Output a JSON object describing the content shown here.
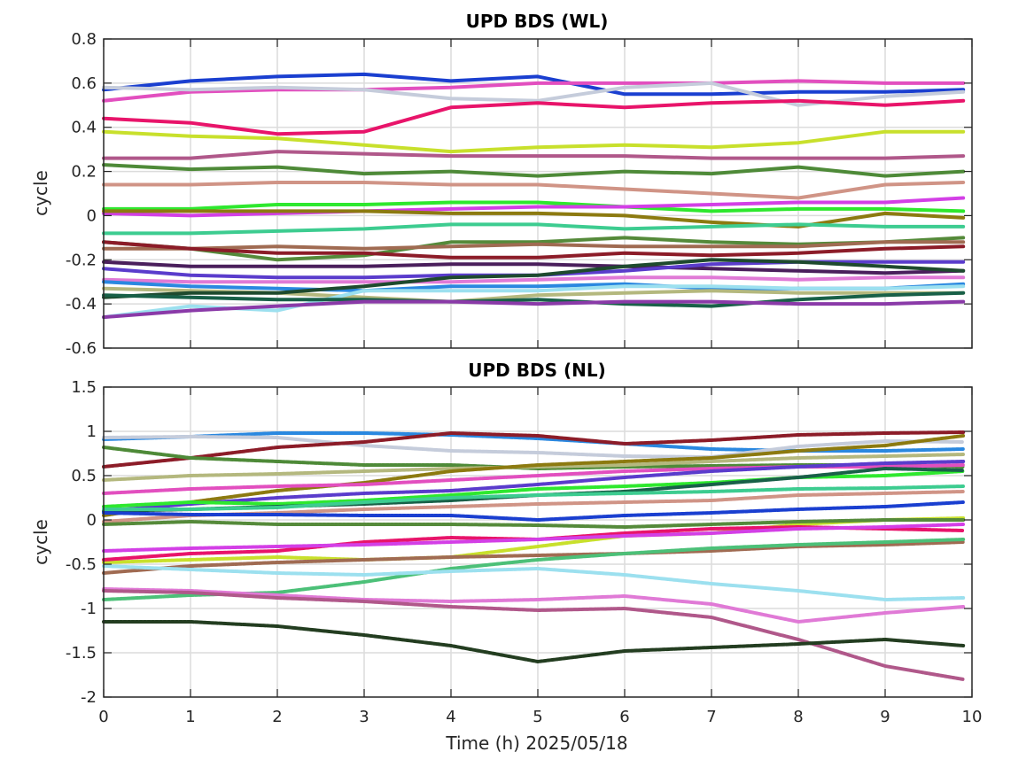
{
  "chart_data": [
    {
      "type": "line",
      "title": "UPD BDS (WL)",
      "xlabel": "",
      "ylabel": "cycle",
      "xlim": [
        0,
        10
      ],
      "ylim": [
        -0.6,
        0.8
      ],
      "xticks": [
        "0",
        "1",
        "2",
        "3",
        "4",
        "5",
        "6",
        "7",
        "8",
        "9",
        "10"
      ],
      "xticks_shown": false,
      "yticks": [
        "-0.6",
        "-0.4",
        "-0.2",
        "0",
        "0.2",
        "0.4",
        "0.6",
        "0.8"
      ],
      "grid": true,
      "x": [
        0,
        1,
        2,
        3,
        4,
        5,
        6,
        7,
        8,
        9,
        9.9
      ],
      "series": [
        {
          "color": "#1a3fd0",
          "values": [
            0.57,
            0.61,
            0.63,
            0.64,
            0.61,
            0.63,
            0.55,
            0.55,
            0.56,
            0.56,
            0.57
          ]
        },
        {
          "color": "#e24fbf",
          "values": [
            0.52,
            0.56,
            0.57,
            0.57,
            0.58,
            0.6,
            0.6,
            0.6,
            0.61,
            0.6,
            0.6
          ]
        },
        {
          "color": "#c5ccdb",
          "values": [
            0.58,
            0.57,
            0.58,
            0.57,
            0.53,
            0.52,
            0.58,
            0.6,
            0.5,
            0.54,
            0.56
          ]
        },
        {
          "color": "#e8146a",
          "values": [
            0.44,
            0.42,
            0.37,
            0.38,
            0.49,
            0.51,
            0.49,
            0.51,
            0.52,
            0.5,
            0.52
          ]
        },
        {
          "color": "#c8e02c",
          "values": [
            0.38,
            0.36,
            0.35,
            0.32,
            0.29,
            0.31,
            0.32,
            0.31,
            0.33,
            0.38,
            0.38
          ]
        },
        {
          "color": "#b0588a",
          "values": [
            0.26,
            0.26,
            0.29,
            0.28,
            0.27,
            0.27,
            0.27,
            0.26,
            0.26,
            0.26,
            0.27
          ]
        },
        {
          "color": "#4e8a38",
          "values": [
            0.23,
            0.21,
            0.22,
            0.19,
            0.2,
            0.18,
            0.2,
            0.19,
            0.22,
            0.18,
            0.2
          ]
        },
        {
          "color": "#d09486",
          "values": [
            0.14,
            0.14,
            0.15,
            0.15,
            0.14,
            0.14,
            0.12,
            0.1,
            0.08,
            0.14,
            0.15
          ]
        },
        {
          "color": "#2ee82e",
          "values": [
            0.03,
            0.03,
            0.05,
            0.05,
            0.06,
            0.06,
            0.04,
            0.02,
            0.03,
            0.03,
            0.02
          ]
        },
        {
          "color": "#d33fe6",
          "values": [
            0.01,
            0.0,
            0.01,
            0.02,
            0.03,
            0.04,
            0.04,
            0.05,
            0.06,
            0.06,
            0.08
          ]
        },
        {
          "color": "#8c7a10",
          "values": [
            0.02,
            0.02,
            0.02,
            0.02,
            0.01,
            0.01,
            0.0,
            -0.03,
            -0.05,
            0.01,
            -0.01
          ]
        },
        {
          "color": "#3dcc90",
          "values": [
            -0.08,
            -0.08,
            -0.07,
            -0.06,
            -0.04,
            -0.04,
            -0.06,
            -0.05,
            -0.04,
            -0.05,
            -0.05
          ]
        },
        {
          "color": "#558a3a",
          "values": [
            -0.12,
            -0.15,
            -0.2,
            -0.18,
            -0.12,
            -0.12,
            -0.1,
            -0.12,
            -0.13,
            -0.12,
            -0.1
          ]
        },
        {
          "color": "#a06b52",
          "values": [
            -0.15,
            -0.15,
            -0.14,
            -0.15,
            -0.14,
            -0.13,
            -0.14,
            -0.14,
            -0.14,
            -0.12,
            -0.12
          ]
        },
        {
          "color": "#8c1c28",
          "values": [
            -0.12,
            -0.15,
            -0.17,
            -0.17,
            -0.19,
            -0.19,
            -0.17,
            -0.18,
            -0.17,
            -0.15,
            -0.14
          ]
        },
        {
          "color": "#4a1f5c",
          "values": [
            -0.21,
            -0.23,
            -0.23,
            -0.23,
            -0.22,
            -0.22,
            -0.23,
            -0.24,
            -0.25,
            -0.26,
            -0.25
          ]
        },
        {
          "color": "#5a3ccc",
          "values": [
            -0.24,
            -0.27,
            -0.28,
            -0.28,
            -0.27,
            -0.27,
            -0.25,
            -0.22,
            -0.21,
            -0.21,
            -0.21
          ]
        },
        {
          "color": "#e07ad6",
          "values": [
            -0.29,
            -0.3,
            -0.3,
            -0.3,
            -0.3,
            -0.29,
            -0.28,
            -0.28,
            -0.29,
            -0.28,
            -0.28
          ]
        },
        {
          "color": "#2a88e0",
          "values": [
            -0.3,
            -0.32,
            -0.33,
            -0.34,
            -0.32,
            -0.32,
            -0.31,
            -0.33,
            -0.33,
            -0.33,
            -0.31
          ]
        },
        {
          "color": "#b4b87e",
          "values": [
            -0.33,
            -0.34,
            -0.35,
            -0.37,
            -0.39,
            -0.36,
            -0.35,
            -0.34,
            -0.35,
            -0.35,
            -0.35
          ]
        },
        {
          "color": "#1e4a2e",
          "values": [
            -0.37,
            -0.35,
            -0.35,
            -0.32,
            -0.28,
            -0.27,
            -0.23,
            -0.2,
            -0.21,
            -0.23,
            -0.25
          ]
        },
        {
          "color": "#9ce0ef",
          "values": [
            -0.46,
            -0.41,
            -0.43,
            -0.34,
            -0.34,
            -0.34,
            -0.32,
            -0.32,
            -0.33,
            -0.33,
            -0.32
          ]
        },
        {
          "color": "#186048",
          "values": [
            -0.36,
            -0.37,
            -0.38,
            -0.38,
            -0.39,
            -0.38,
            -0.4,
            -0.41,
            -0.38,
            -0.36,
            -0.35
          ]
        },
        {
          "color": "#8a3aa8",
          "values": [
            -0.46,
            -0.43,
            -0.41,
            -0.39,
            -0.39,
            -0.4,
            -0.39,
            -0.39,
            -0.4,
            -0.4,
            -0.39
          ]
        }
      ]
    },
    {
      "type": "line",
      "title": "UPD BDS (NL)",
      "xlabel": "Time (h) 2025/05/18",
      "ylabel": "cycle",
      "xlim": [
        0,
        10
      ],
      "ylim": [
        -2,
        1.5
      ],
      "xticks": [
        "0",
        "1",
        "2",
        "3",
        "4",
        "5",
        "6",
        "7",
        "8",
        "9",
        "10"
      ],
      "yticks": [
        "-2",
        "-1.5",
        "-1",
        "-0.5",
        "0",
        "0.5",
        "1",
        "1.5"
      ],
      "grid": true,
      "x": [
        0,
        1,
        2,
        3,
        4,
        5,
        6,
        7,
        8,
        9,
        9.9
      ],
      "series": [
        {
          "color": "#2a88e0",
          "values": [
            0.91,
            0.94,
            0.98,
            0.98,
            0.96,
            0.92,
            0.86,
            0.8,
            0.78,
            0.78,
            0.8
          ]
        },
        {
          "color": "#c5ccdb",
          "values": [
            0.93,
            0.94,
            0.93,
            0.84,
            0.78,
            0.76,
            0.72,
            0.71,
            0.83,
            0.89,
            0.88
          ]
        },
        {
          "color": "#8c1c28",
          "values": [
            0.6,
            0.7,
            0.82,
            0.88,
            0.98,
            0.95,
            0.86,
            0.9,
            0.96,
            0.98,
            0.99
          ]
        },
        {
          "color": "#4e8a38",
          "values": [
            0.82,
            0.7,
            0.66,
            0.62,
            0.62,
            0.58,
            0.6,
            0.61,
            0.62,
            0.62,
            0.6
          ]
        },
        {
          "color": "#b4b87e",
          "values": [
            0.45,
            0.5,
            0.52,
            0.55,
            0.58,
            0.6,
            0.62,
            0.66,
            0.7,
            0.72,
            0.74
          ]
        },
        {
          "color": "#8c7a10",
          "values": [
            0.05,
            0.2,
            0.33,
            0.42,
            0.55,
            0.62,
            0.66,
            0.7,
            0.78,
            0.84,
            0.95
          ]
        },
        {
          "color": "#e24fbf",
          "values": [
            0.3,
            0.35,
            0.38,
            0.4,
            0.45,
            0.5,
            0.55,
            0.58,
            0.6,
            0.6,
            0.62
          ]
        },
        {
          "color": "#5a3ccc",
          "values": [
            0.1,
            0.18,
            0.25,
            0.3,
            0.33,
            0.4,
            0.48,
            0.55,
            0.6,
            0.64,
            0.66
          ]
        },
        {
          "color": "#2ee82e",
          "values": [
            0.15,
            0.2,
            0.18,
            0.22,
            0.28,
            0.35,
            0.38,
            0.42,
            0.48,
            0.5,
            0.55
          ]
        },
        {
          "color": "#186048",
          "values": [
            0.1,
            0.12,
            0.15,
            0.18,
            0.22,
            0.28,
            0.32,
            0.4,
            0.48,
            0.58,
            0.56
          ]
        },
        {
          "color": "#3dcc90",
          "values": [
            0.12,
            0.12,
            0.14,
            0.2,
            0.25,
            0.28,
            0.3,
            0.32,
            0.35,
            0.36,
            0.38
          ]
        },
        {
          "color": "#d09486",
          "values": [
            -0.02,
            0.05,
            0.08,
            0.12,
            0.15,
            0.18,
            0.2,
            0.22,
            0.28,
            0.3,
            0.32
          ]
        },
        {
          "color": "#1a3fd0",
          "values": [
            0.08,
            0.06,
            0.06,
            0.05,
            0.05,
            0.0,
            0.05,
            0.08,
            0.12,
            0.15,
            0.2
          ]
        },
        {
          "color": "#c8e02c",
          "values": [
            -0.48,
            -0.45,
            -0.42,
            -0.45,
            -0.42,
            -0.3,
            -0.18,
            -0.15,
            -0.05,
            0.0,
            0.02
          ]
        },
        {
          "color": "#558a3a",
          "values": [
            -0.05,
            -0.02,
            -0.05,
            -0.05,
            -0.05,
            -0.06,
            -0.08,
            -0.05,
            -0.02,
            0.0,
            0.0
          ]
        },
        {
          "color": "#e8146a",
          "values": [
            -0.45,
            -0.38,
            -0.35,
            -0.25,
            -0.2,
            -0.22,
            -0.15,
            -0.1,
            -0.08,
            -0.1,
            -0.12
          ]
        },
        {
          "color": "#d33fe6",
          "values": [
            -0.35,
            -0.32,
            -0.3,
            -0.28,
            -0.25,
            -0.22,
            -0.18,
            -0.15,
            -0.1,
            -0.08,
            -0.05
          ]
        },
        {
          "color": "#a06b52",
          "values": [
            -0.6,
            -0.52,
            -0.48,
            -0.45,
            -0.42,
            -0.4,
            -0.38,
            -0.35,
            -0.3,
            -0.28,
            -0.25
          ]
        },
        {
          "color": "#4cc078",
          "values": [
            -0.9,
            -0.85,
            -0.82,
            -0.7,
            -0.55,
            -0.45,
            -0.38,
            -0.32,
            -0.28,
            -0.25,
            -0.22
          ]
        },
        {
          "color": "#9ce0ef",
          "values": [
            -0.52,
            -0.56,
            -0.6,
            -0.62,
            -0.58,
            -0.55,
            -0.62,
            -0.72,
            -0.8,
            -0.9,
            -0.88
          ]
        },
        {
          "color": "#e07ad6",
          "values": [
            -0.78,
            -0.8,
            -0.85,
            -0.9,
            -0.92,
            -0.9,
            -0.86,
            -0.95,
            -1.15,
            -1.05,
            -0.98
          ]
        },
        {
          "color": "#b0588a",
          "values": [
            -0.8,
            -0.82,
            -0.88,
            -0.92,
            -0.98,
            -1.02,
            -1.0,
            -1.1,
            -1.35,
            -1.65,
            -1.8
          ]
        },
        {
          "color": "#233d20",
          "values": [
            -1.15,
            -1.15,
            -1.2,
            -1.3,
            -1.42,
            -1.6,
            -1.48,
            -1.44,
            -1.4,
            -1.35,
            -1.42
          ]
        }
      ]
    }
  ]
}
